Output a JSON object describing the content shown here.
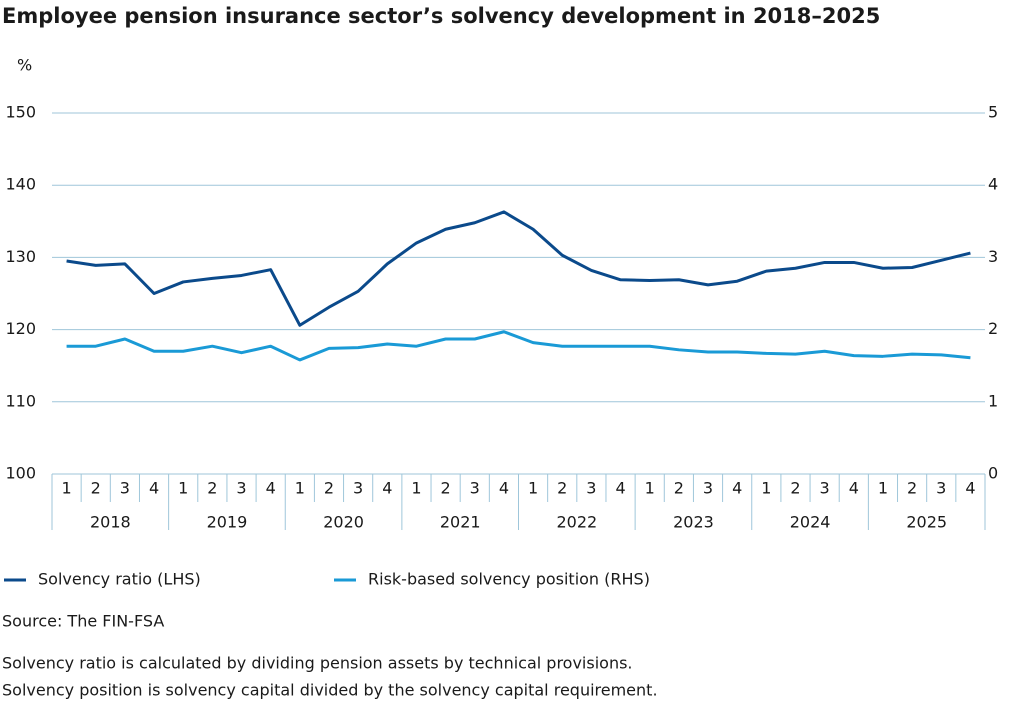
{
  "chart_data": {
    "type": "line",
    "title": "Employee pension insurance sector’s solvency development in 2018–2025",
    "y_unit": "%",
    "categories": [
      "1",
      "2",
      "3",
      "4",
      "1",
      "2",
      "3",
      "4",
      "1",
      "2",
      "3",
      "4",
      "1",
      "2",
      "3",
      "4",
      "1",
      "2",
      "3",
      "4",
      "1",
      "2",
      "3",
      "4",
      "1",
      "2",
      "3",
      "4",
      "1",
      "2",
      "3",
      "4"
    ],
    "category_groups": [
      "2018",
      "2019",
      "2020",
      "2021",
      "2022",
      "2023",
      "2024",
      "2025"
    ],
    "series": [
      {
        "name": "Solvency ratio (LHS)",
        "color": "#0b4a8b",
        "values": [
          129.5,
          128.9,
          129.1,
          125.0,
          126.6,
          127.1,
          127.5,
          128.3,
          120.6,
          123.1,
          125.3,
          129.1,
          132.0,
          133.9,
          134.8,
          136.3,
          133.9,
          130.3,
          128.2,
          126.9,
          126.8,
          126.9,
          126.2,
          126.7,
          128.1,
          128.5,
          129.3,
          129.3,
          128.5,
          128.6,
          129.6,
          130.6
        ]
      },
      {
        "name": "Risk-based solvency position (RHS)",
        "color": "#1a9ad6",
        "axis": "y2",
        "values": [
          1.77,
          1.77,
          1.87,
          1.7,
          1.7,
          1.77,
          1.68,
          1.77,
          1.58,
          1.74,
          1.75,
          1.8,
          1.77,
          1.87,
          1.87,
          1.97,
          1.82,
          1.77,
          1.77,
          1.77,
          1.77,
          1.72,
          1.69,
          1.69,
          1.67,
          1.66,
          1.7,
          1.64,
          1.63,
          1.66,
          1.65,
          1.61
        ]
      }
    ],
    "ylim": [
      100,
      150
    ],
    "yticks": [
      100,
      110,
      120,
      130,
      140,
      150
    ],
    "y2lim": [
      0,
      5
    ],
    "y2ticks": [
      0,
      1,
      2,
      3,
      4,
      5
    ],
    "grid": true,
    "source": "Source: The FIN-FSA",
    "notes": [
      "Solvency ratio is calculated by dividing pension assets by technical provisions.",
      "Solvency position is solvency capital divided by the solvency capital requirement."
    ]
  }
}
